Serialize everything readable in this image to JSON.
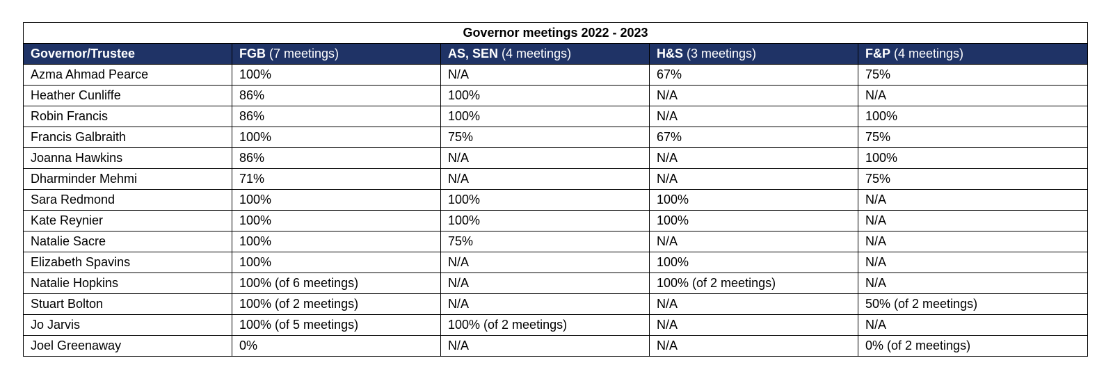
{
  "title": "Governor meetings 2022 - 2023",
  "header": [
    {
      "bold": "Governor/Trustee",
      "rest": ""
    },
    {
      "bold": "FGB",
      "rest": " (7 meetings)"
    },
    {
      "bold": "AS, SEN",
      "rest": " (4 meetings)"
    },
    {
      "bold": "H&S",
      "rest": " (3 meetings)"
    },
    {
      "bold": "F&P",
      "rest": " (4 meetings)"
    }
  ],
  "rows": [
    [
      "Azma Ahmad Pearce",
      "100%",
      "N/A",
      "67%",
      "75%"
    ],
    [
      "Heather Cunliffe",
      "86%",
      "100%",
      "N/A",
      "N/A"
    ],
    [
      "Robin Francis",
      "86%",
      "100%",
      "N/A",
      "100%"
    ],
    [
      "Francis Galbraith",
      "100%",
      "75%",
      "67%",
      "75%"
    ],
    [
      "Joanna Hawkins",
      "86%",
      "N/A",
      "N/A",
      "100%"
    ],
    [
      "Dharminder Mehmi",
      "71%",
      "N/A",
      "N/A",
      "75%"
    ],
    [
      "Sara Redmond",
      "100%",
      "100%",
      "100%",
      "N/A"
    ],
    [
      "Kate Reynier",
      "100%",
      "100%",
      "100%",
      "N/A"
    ],
    [
      "Natalie Sacre",
      "100%",
      "75%",
      "N/A",
      "N/A"
    ],
    [
      "Elizabeth Spavins",
      "100%",
      "N/A",
      "100%",
      "N/A"
    ],
    [
      "Natalie Hopkins",
      "100% (of 6 meetings)",
      "N/A",
      "100% (of 2 meetings)",
      "N/A"
    ],
    [
      "Stuart Bolton",
      "100% (of 2 meetings)",
      "N/A",
      "N/A",
      "50% (of 2 meetings)"
    ],
    [
      "Jo Jarvis",
      "100% (of 5 meetings)",
      "100% (of 2 meetings)",
      "N/A",
      "N/A"
    ],
    [
      "Joel Greenaway",
      "0%",
      "N/A",
      "N/A",
      "0% (of 2 meetings)"
    ]
  ],
  "colors": {
    "header_bg": "#1f3366",
    "header_text": "#ffffff",
    "border": "#000000"
  }
}
